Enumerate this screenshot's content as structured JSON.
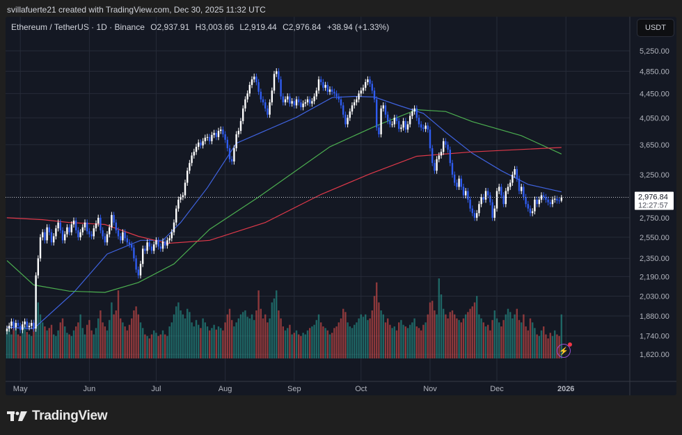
{
  "header": {
    "credit": "svillafuerte21 created with TradingView.com, Dec 30, 2025 11:32 UTC"
  },
  "legend": {
    "symbol": "Ethereum / TetherUS · 1D · Binance",
    "open": "O2,937.91",
    "high": "H3,003.66",
    "low": "L2,919.44",
    "close": "C2,976.84",
    "change": "+38.94 (+1.33%)"
  },
  "currency_button": "USDT",
  "last_price": {
    "label": "2,976.84",
    "countdown": "12:27:57",
    "value": 2976.84
  },
  "brand": "TradingView",
  "colors": {
    "up_candle": "#ffffff",
    "down_candle": "#2f5cf0",
    "volume_up": "#26a69a",
    "volume_down": "#ef5350",
    "background": "#141823"
  },
  "icons": {
    "logo": "tradingview-logo-icon",
    "alert": "lightning-bolt-icon"
  },
  "chart_data": {
    "type": "candlestick",
    "title": "",
    "scale": "log",
    "grid": true,
    "last_date": "2025-12-30",
    "last_candle": {
      "open": 2937.91,
      "high": 3003.66,
      "low": 2919.44,
      "close": 2976.84
    },
    "y_ticks": [
      {
        "label": "5,250.00",
        "value": 5250
      },
      {
        "label": "4,850.00",
        "value": 4850
      },
      {
        "label": "4,450.00",
        "value": 4450
      },
      {
        "label": "4,050.00",
        "value": 4050
      },
      {
        "label": "3,650.00",
        "value": 3650
      },
      {
        "label": "3,250.00",
        "value": 3250
      },
      {
        "label": "2,750.00",
        "value": 2750
      },
      {
        "label": "2,550.00",
        "value": 2550
      },
      {
        "label": "2,350.00",
        "value": 2350
      },
      {
        "label": "2,190.00",
        "value": 2190
      },
      {
        "label": "2,030.00",
        "value": 2030
      },
      {
        "label": "1,880.00",
        "value": 1880
      },
      {
        "label": "1,740.00",
        "value": 1740
      },
      {
        "label": "1,620.00",
        "value": 1620
      }
    ],
    "x_ticks": [
      {
        "label": "May",
        "date": "2025-05-01"
      },
      {
        "label": "Jun",
        "date": "2025-06-01"
      },
      {
        "label": "Jul",
        "date": "2025-07-01"
      },
      {
        "label": "Aug",
        "date": "2025-08-01"
      },
      {
        "label": "Sep",
        "date": "2025-09-01"
      },
      {
        "label": "Oct",
        "date": "2025-10-01"
      },
      {
        "label": "Nov",
        "date": "2025-11-01"
      },
      {
        "label": "Dec",
        "date": "2025-12-01"
      },
      {
        "label": "2026",
        "date": "2026-01-01",
        "bold": true
      }
    ],
    "closes": [
      1790,
      1810,
      1840,
      1800,
      1830,
      1810,
      1780,
      1820,
      1840,
      1800,
      1810,
      1830,
      1790,
      2200,
      2350,
      2550,
      2600,
      2520,
      2650,
      2600,
      2500,
      2560,
      2640,
      2700,
      2620,
      2520,
      2580,
      2650,
      2600,
      2680,
      2720,
      2620,
      2550,
      2600,
      2650,
      2700,
      2610,
      2580,
      2560,
      2640,
      2690,
      2750,
      2620,
      2560,
      2500,
      2580,
      2650,
      2780,
      2700,
      2620,
      2560,
      2520,
      2600,
      2540,
      2500,
      2480,
      2450,
      2350,
      2250,
      2200,
      2300,
      2440,
      2420,
      2500,
      2460,
      2420,
      2480,
      2520,
      2460,
      2440,
      2510,
      2470,
      2520,
      2540,
      2600,
      2700,
      2850,
      2950,
      2980,
      3000,
      3150,
      3300,
      3400,
      3500,
      3550,
      3620,
      3680,
      3640,
      3700,
      3750,
      3760,
      3700,
      3790,
      3820,
      3760,
      3850,
      3870,
      3800,
      3720,
      3600,
      3450,
      3420,
      3600,
      3800,
      3850,
      4000,
      4200,
      4350,
      4450,
      4600,
      4700,
      4750,
      4650,
      4480,
      4350,
      4300,
      4200,
      4100,
      4300,
      4500,
      4800,
      4850,
      4700,
      4400,
      4300,
      4350,
      4400,
      4280,
      4320,
      4250,
      4350,
      4300,
      4220,
      4280,
      4300,
      4350,
      4280,
      4320,
      4400,
      4500,
      4700,
      4650,
      4550,
      4600,
      4480,
      4520,
      4480,
      4450,
      4400,
      4350,
      4250,
      4100,
      3950,
      4050,
      4150,
      4250,
      4300,
      4350,
      4450,
      4500,
      4550,
      4650,
      4700,
      4620,
      4500,
      4350,
      3900,
      3800,
      4200,
      4250,
      4100,
      4000,
      3950,
      3950,
      4050,
      4000,
      3880,
      3900,
      4000,
      3870,
      3950,
      4080,
      4150,
      4200,
      4050,
      3950,
      3900,
      3880,
      3930,
      3870,
      3600,
      3400,
      3300,
      3450,
      3500,
      3550,
      3700,
      3650,
      3580,
      3400,
      3250,
      3150,
      3100,
      3200,
      3100,
      3000,
      3050,
      2950,
      2850,
      2800,
      2750,
      2800,
      2900,
      2980,
      2950,
      3050,
      3000,
      2920,
      2750,
      2850,
      3050,
      3100,
      3000,
      2900,
      3050,
      3100,
      3150,
      3250,
      3320,
      3200,
      3050,
      3100,
      2980,
      2900,
      2850,
      2800,
      2820,
      2950,
      2900,
      2950,
      3000,
      2980,
      2950,
      2920,
      2900,
      2950,
      2960,
      2940,
      2937.91,
      2976.84
    ],
    "volume_relative": [
      35,
      40,
      30,
      38,
      42,
      30,
      28,
      35,
      40,
      33,
      30,
      28,
      45,
      100,
      70,
      55,
      45,
      40,
      35,
      38,
      42,
      30,
      28,
      35,
      45,
      50,
      40,
      32,
      30,
      28,
      35,
      40,
      45,
      55,
      38,
      30,
      42,
      48,
      35,
      30,
      38,
      50,
      60,
      45,
      40,
      35,
      48,
      70,
      55,
      60,
      85,
      50,
      45,
      40,
      35,
      42,
      50,
      60,
      65,
      55,
      45,
      38,
      30,
      28,
      25,
      30,
      35,
      32,
      28,
      30,
      35,
      30,
      28,
      40,
      45,
      55,
      65,
      70,
      60,
      55,
      50,
      62,
      58,
      45,
      40,
      48,
      42,
      38,
      50,
      45,
      40,
      35,
      38,
      42,
      36,
      40,
      38,
      35,
      45,
      55,
      62,
      48,
      40,
      45,
      50,
      55,
      58,
      60,
      52,
      50,
      55,
      48,
      60,
      85,
      62,
      50,
      55,
      45,
      50,
      70,
      75,
      85,
      60,
      50,
      40,
      35,
      38,
      42,
      30,
      32,
      35,
      30,
      28,
      32,
      30,
      35,
      38,
      40,
      42,
      48,
      55,
      45,
      40,
      38,
      35,
      30,
      32,
      38,
      40,
      45,
      50,
      62,
      58,
      45,
      40,
      38,
      42,
      45,
      50,
      55,
      52,
      55,
      48,
      50,
      60,
      78,
      95,
      70,
      60,
      55,
      45,
      50,
      42,
      38,
      40,
      35,
      45,
      48,
      42,
      40,
      38,
      42,
      45,
      50,
      40,
      38,
      35,
      42,
      45,
      55,
      70,
      72,
      60,
      55,
      100,
      80,
      62,
      55,
      50,
      58,
      60,
      55,
      50,
      48,
      45,
      50,
      55,
      58,
      62,
      65,
      70,
      78,
      55,
      50,
      45,
      40,
      42,
      35,
      48,
      60,
      50,
      45,
      40,
      48,
      55,
      62,
      58,
      50,
      55,
      62,
      48,
      45,
      55,
      40,
      35,
      50,
      45,
      38,
      30,
      28,
      35,
      40,
      30,
      25,
      32,
      28,
      35,
      30,
      28,
      55
    ],
    "moving_averages": [
      {
        "color": "#3f63e0",
        "points": [
          [
            "2025-04-25",
            1800
          ],
          [
            "2025-05-07",
            1790
          ],
          [
            "2025-05-25",
            2060
          ],
          [
            "2025-06-09",
            2390
          ],
          [
            "2025-06-24",
            2520
          ],
          [
            "2025-07-04",
            2520
          ],
          [
            "2025-07-12",
            2700
          ],
          [
            "2025-07-24",
            3090
          ],
          [
            "2025-08-06",
            3670
          ],
          [
            "2025-09-02",
            4060
          ],
          [
            "2025-09-18",
            4380
          ],
          [
            "2025-09-28",
            4400
          ],
          [
            "2025-10-07",
            4390
          ],
          [
            "2025-10-17",
            4260
          ],
          [
            "2025-10-29",
            4120
          ],
          [
            "2025-11-08",
            3830
          ],
          [
            "2025-11-20",
            3530
          ],
          [
            "2025-12-03",
            3300
          ],
          [
            "2025-12-15",
            3130
          ],
          [
            "2025-12-30",
            3040
          ]
        ]
      },
      {
        "color": "#4caf50",
        "points": [
          [
            "2025-04-25",
            2330
          ],
          [
            "2025-05-07",
            2120
          ],
          [
            "2025-05-23",
            2070
          ],
          [
            "2025-06-08",
            2060
          ],
          [
            "2025-06-23",
            2140
          ],
          [
            "2025-07-09",
            2300
          ],
          [
            "2025-07-25",
            2630
          ],
          [
            "2025-08-16",
            2980
          ],
          [
            "2025-09-17",
            3620
          ],
          [
            "2025-10-08",
            3930
          ],
          [
            "2025-10-26",
            4180
          ],
          [
            "2025-11-08",
            4150
          ],
          [
            "2025-11-20",
            3990
          ],
          [
            "2025-12-12",
            3780
          ],
          [
            "2025-12-30",
            3520
          ]
        ]
      },
      {
        "color": "#e0394a",
        "points": [
          [
            "2025-04-25",
            2750
          ],
          [
            "2025-05-11",
            2730
          ],
          [
            "2025-05-23",
            2700
          ],
          [
            "2025-06-08",
            2680
          ],
          [
            "2025-06-23",
            2560
          ],
          [
            "2025-07-06",
            2490
          ],
          [
            "2025-07-25",
            2520
          ],
          [
            "2025-08-19",
            2700
          ],
          [
            "2025-09-13",
            3010
          ],
          [
            "2025-10-05",
            3260
          ],
          [
            "2025-10-26",
            3490
          ],
          [
            "2025-11-20",
            3550
          ],
          [
            "2025-12-30",
            3610
          ]
        ]
      }
    ]
  }
}
